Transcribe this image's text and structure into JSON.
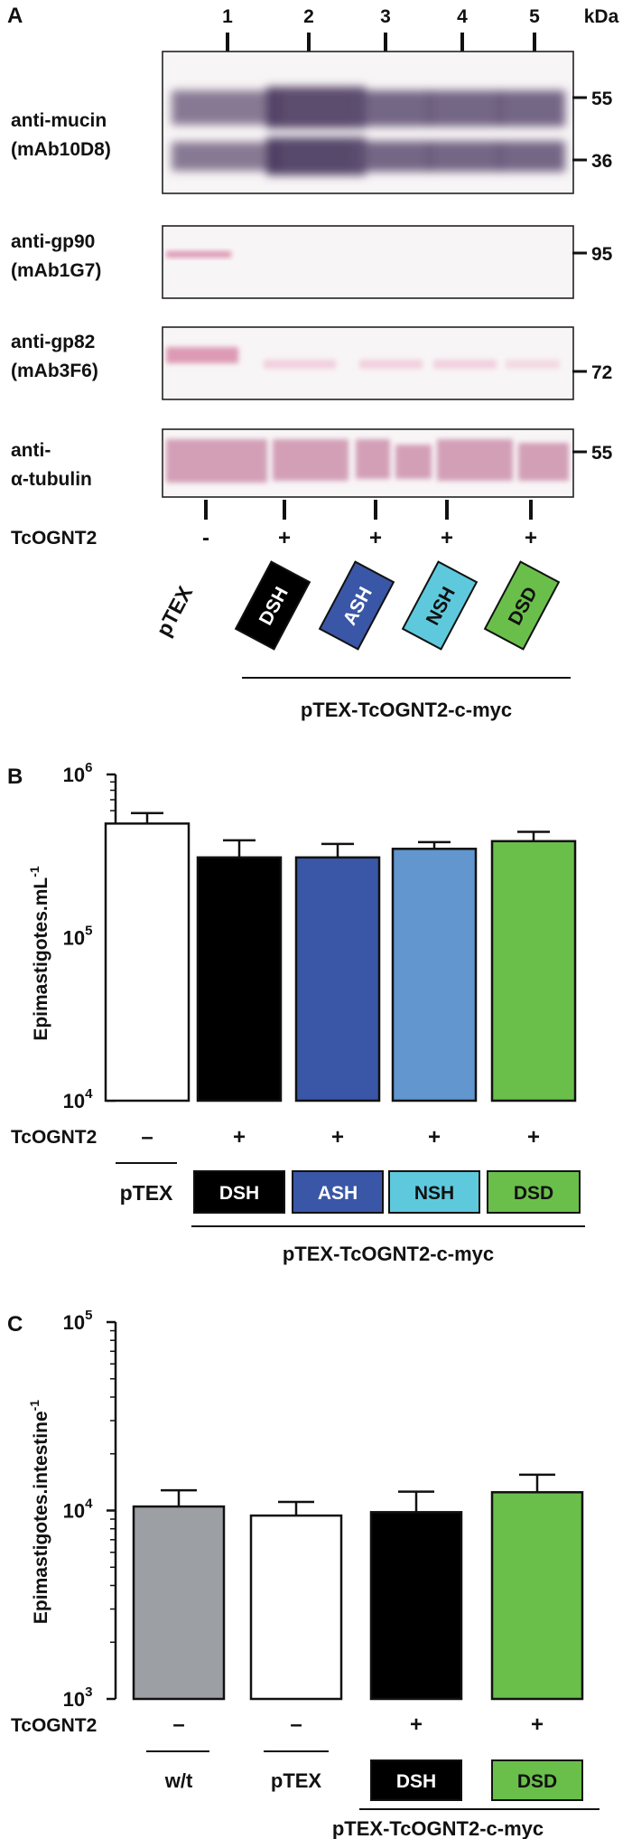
{
  "panel_a": {
    "letter": "A",
    "lanes": [
      "1",
      "2",
      "3",
      "4",
      "5"
    ],
    "kda_label": "kDa",
    "blots": [
      {
        "label_line1": "anti-mucin",
        "label_line2": "(mAb10D8)",
        "markers": [
          "55",
          "36"
        ]
      },
      {
        "label_line1": "anti-gp90",
        "label_line2": "(mAb1G7)",
        "markers": [
          "95"
        ]
      },
      {
        "label_line1": "anti-gp82",
        "label_line2": "(mAb3F6)",
        "markers": [
          "72"
        ]
      },
      {
        "label_line1": "anti-",
        "label_line2": "α-tubulin",
        "markers": [
          "55"
        ]
      }
    ],
    "tcognt2_label": "TcOGNT2",
    "signs": [
      "-",
      "+",
      "+",
      "+",
      "+"
    ],
    "strains": [
      "pTEX",
      "DSH",
      "ASH",
      "NSH",
      "DSD"
    ],
    "group_label": "pTEX-TcOGNT2-c-myc"
  },
  "panel_b": {
    "letter": "B",
    "ylabel": "Epimastigotes.mL",
    "ylabel_sup": "-1",
    "tcognt2_label": "TcOGNT2",
    "signs": [
      "–",
      "+",
      "+",
      "+",
      "+"
    ],
    "strains": [
      "pTEX",
      "DSH",
      "ASH",
      "NSH",
      "DSD"
    ],
    "group_label": "pTEX-TcOGNT2-c-myc"
  },
  "panel_c": {
    "letter": "C",
    "ylabel": "Epimastigotes.intestine",
    "ylabel_sup": "-1",
    "tcognt2_label": "TcOGNT2",
    "signs": [
      "–",
      "–",
      "+",
      "+"
    ],
    "strains": [
      "w/t",
      "pTEX",
      "DSH",
      "DSD"
    ],
    "group_label": "pTEX-TcOGNT2-c-myc"
  },
  "colors": {
    "white": "#ffffff",
    "black": "#000000",
    "ash_blue": "#3a56a6",
    "nsh_blue": "#6196cf",
    "nsh_label": "#5ec9dd",
    "dsd_green": "#6abf4b",
    "wt_gray": "#9c9fa3"
  },
  "chart_data": [
    {
      "type": "bar",
      "panel": "B",
      "categories": [
        "pTEX",
        "DSH",
        "ASH",
        "NSH",
        "DSD"
      ],
      "values": [
        500000,
        310000,
        310000,
        350000,
        390000
      ],
      "errors": [
        80000,
        85000,
        65000,
        35000,
        55000
      ],
      "colors": [
        "#ffffff",
        "#000000",
        "#3a56a6",
        "#6196cf",
        "#6abf4b"
      ],
      "yscale": "log",
      "ylim": [
        10000,
        1000000
      ],
      "yticks": [
        10000,
        100000,
        1000000
      ],
      "ylabel": "Epimastigotes.mL-1"
    },
    {
      "type": "bar",
      "panel": "C",
      "categories": [
        "w/t",
        "pTEX",
        "DSH",
        "DSD"
      ],
      "values": [
        10500,
        9400,
        9800,
        12500
      ],
      "errors": [
        2300,
        1700,
        2800,
        3000
      ],
      "colors": [
        "#9c9fa3",
        "#ffffff",
        "#000000",
        "#6abf4b"
      ],
      "yscale": "log",
      "ylim": [
        1000,
        100000
      ],
      "yticks": [
        1000,
        10000,
        100000
      ],
      "ylabel": "Epimastigotes.intestine-1"
    }
  ]
}
